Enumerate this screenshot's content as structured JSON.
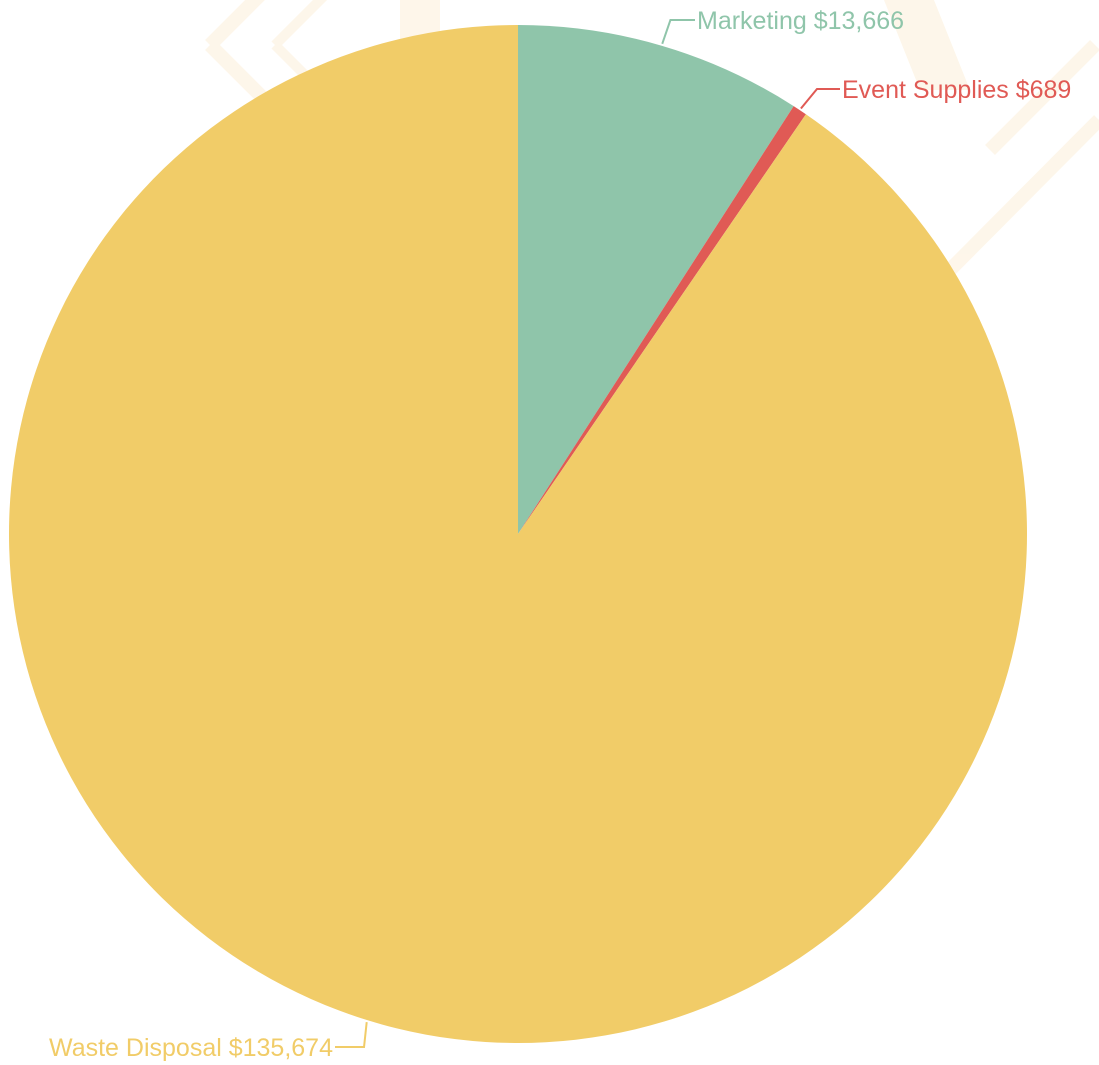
{
  "chart_data": {
    "type": "pie",
    "title": "",
    "slices": [
      {
        "label": "Marketing",
        "value": 13666,
        "display_value": "$13,666",
        "color": "#8fc5aa"
      },
      {
        "label": "Event Supplies",
        "value": 689,
        "display_value": "$689",
        "color": "#e05a55"
      },
      {
        "label": "Waste Disposal",
        "value": 135674,
        "display_value": "$135,674",
        "color": "#f1cc68"
      }
    ],
    "start_angle": "top",
    "direction": "clockwise",
    "legend": "none",
    "labels": "outside-with-leader-lines"
  }
}
